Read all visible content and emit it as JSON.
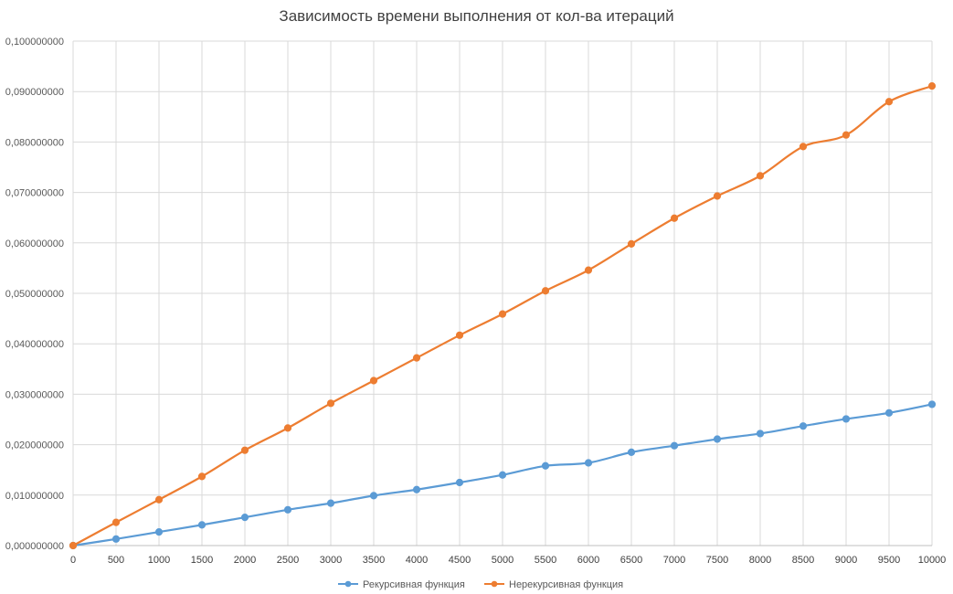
{
  "chart_data": {
    "type": "line",
    "title": "Зависимость времени выполнения от кол-ва итераций",
    "xlabel": "",
    "ylabel": "",
    "x": [
      0,
      500,
      1000,
      1500,
      2000,
      2500,
      3000,
      3500,
      4000,
      4500,
      5000,
      5500,
      6000,
      6500,
      7000,
      7500,
      8000,
      8500,
      9000,
      9500,
      10000
    ],
    "x_tick_labels": [
      "0",
      "500",
      "1000",
      "1500",
      "2000",
      "2500",
      "3000",
      "3500",
      "4000",
      "4500",
      "5000",
      "5500",
      "6000",
      "6500",
      "7000",
      "7500",
      "8000",
      "8500",
      "9000",
      "9500",
      "10000"
    ],
    "ylim": [
      0,
      0.1
    ],
    "y_ticks": [
      0,
      0.01,
      0.02,
      0.03,
      0.04,
      0.05,
      0.06,
      0.07,
      0.08,
      0.09,
      0.1
    ],
    "y_tick_labels": [
      "0,000000000",
      "0,010000000",
      "0,020000000",
      "0,030000000",
      "0,040000000",
      "0,050000000",
      "0,060000000",
      "0,070000000",
      "0,080000000",
      "0,090000000",
      "0,100000000"
    ],
    "grid": true,
    "legend_position": "bottom",
    "series": [
      {
        "name": "Рекурсивная функция",
        "color": "#5b9bd5",
        "values": [
          0.0,
          0.0013,
          0.0027,
          0.0041,
          0.0056,
          0.0071,
          0.0084,
          0.0099,
          0.0111,
          0.0125,
          0.014,
          0.0158,
          0.0164,
          0.0185,
          0.0198,
          0.0211,
          0.0222,
          0.0237,
          0.0251,
          0.0263,
          0.028
        ]
      },
      {
        "name": "Нерекурсивная функция",
        "color": "#ed7d31",
        "values": [
          0.0,
          0.0046,
          0.0091,
          0.0137,
          0.0189,
          0.0233,
          0.0282,
          0.0327,
          0.0372,
          0.0417,
          0.0459,
          0.0505,
          0.0546,
          0.0598,
          0.0649,
          0.0693,
          0.0733,
          0.0791,
          0.0814,
          0.088,
          0.0911
        ]
      }
    ]
  }
}
